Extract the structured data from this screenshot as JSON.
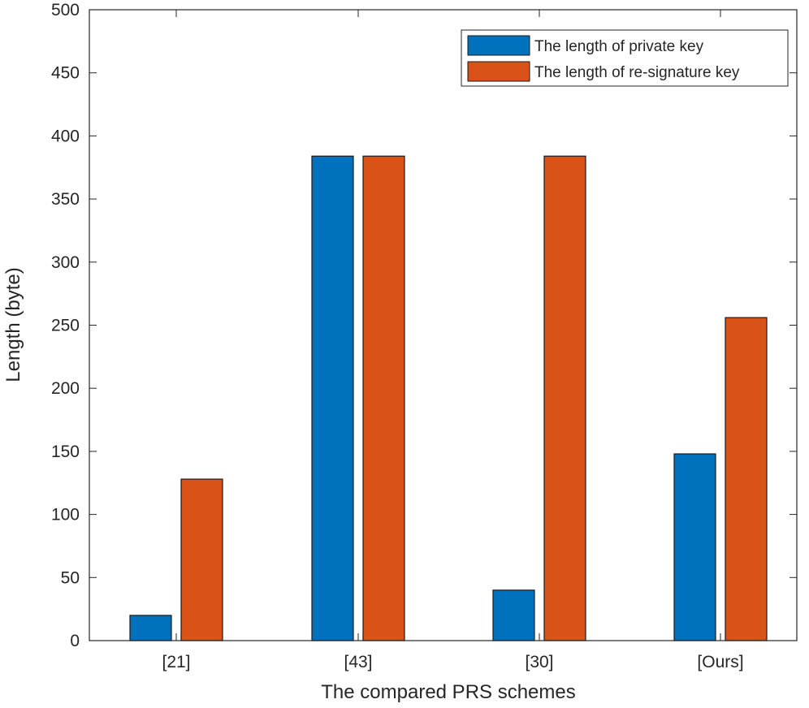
{
  "chart_data": {
    "type": "bar",
    "title": "",
    "xlabel": "The compared PRS schemes",
    "ylabel": "Length (byte)",
    "categories": [
      "[21]",
      "[43]",
      "[30]",
      "[Ours]"
    ],
    "series": [
      {
        "name": "The length of private key",
        "values": [
          20,
          384,
          40,
          148
        ],
        "color": "#0072BD"
      },
      {
        "name": "The length of re-signature key",
        "values": [
          128,
          384,
          384,
          256
        ],
        "color": "#D95319"
      }
    ],
    "ylim": [
      0,
      500
    ],
    "yticks": [
      0,
      50,
      100,
      150,
      200,
      250,
      300,
      350,
      400,
      450,
      500
    ],
    "grid": false,
    "legend_position": "top-right"
  }
}
